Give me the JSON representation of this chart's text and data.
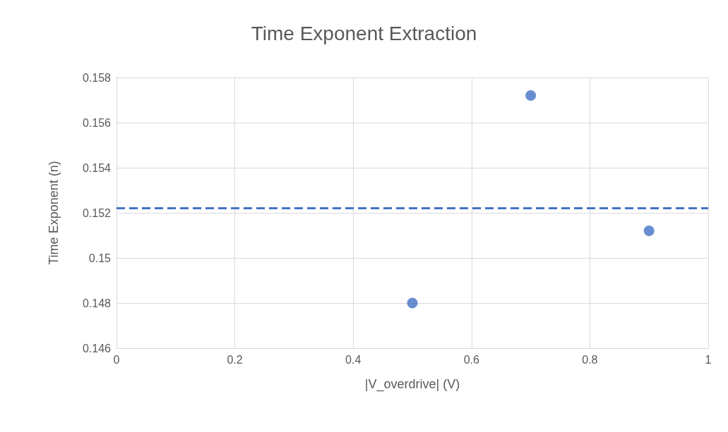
{
  "chart_data": {
    "type": "scatter",
    "title": "Time Exponent Extraction",
    "xlabel": "|V_overdrive| (V)",
    "ylabel": "Time Exponent (n)",
    "x": [
      0.5,
      0.7,
      0.9
    ],
    "series": [
      {
        "color": "#4472c4",
        "values": [
          0.148,
          0.1572,
          0.1512
        ]
      }
    ],
    "xlim": [
      0,
      1
    ],
    "xticks": [
      0,
      0.2,
      0.4,
      0.6,
      0.8,
      1
    ],
    "ylim": [
      0.146,
      0.158
    ],
    "yticks": [
      0.146,
      0.148,
      0.15,
      0.152,
      0.154,
      0.156,
      0.158
    ],
    "ref_lines": [
      {
        "axis": "y",
        "value": 0.1522,
        "color": "#4472c4",
        "line_style": "dashed"
      }
    ],
    "grid": true,
    "marker": "circle"
  }
}
